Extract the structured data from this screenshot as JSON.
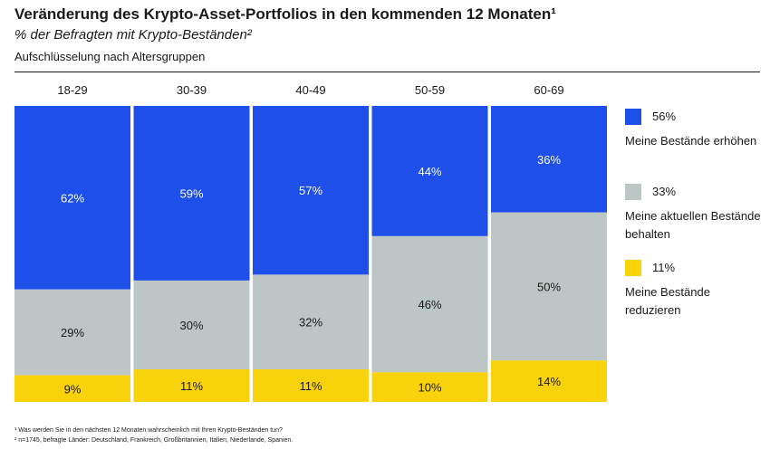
{
  "title": "Veränderung des Krypto-Asset-Portfolios in den kommenden 12 Monaten¹",
  "subtitle": "% der Befragten mit Krypto-Beständen²",
  "breakdown": "Aufschlüsselung nach Altersgruppen",
  "colors": {
    "blue": "#1e4fe8",
    "grey": "#bcc6c5",
    "yellow": "#f8d20a"
  },
  "chart_data": {
    "type": "bar",
    "stacked": true,
    "orientation": "vertical",
    "categories": [
      "18-29",
      "30-39",
      "40-49",
      "50-59",
      "60-69"
    ],
    "ylim": [
      0,
      100
    ],
    "grid": false,
    "legend_position": "right",
    "series": [
      {
        "name": "Meine Bestände erhöhen",
        "color": "#1e4fe8",
        "values": [
          62,
          59,
          57,
          44,
          36
        ],
        "labels": [
          "62%",
          "59%",
          "57%",
          "44%",
          "36%"
        ]
      },
      {
        "name": "Meine aktuellen Bestände behalten",
        "color": "#bcc6c5",
        "values": [
          29,
          30,
          32,
          46,
          50
        ],
        "labels": [
          "29%",
          "30%",
          "32%",
          "46%",
          "50%"
        ]
      },
      {
        "name": "Meine Bestände reduzieren",
        "color": "#f8d20a",
        "values": [
          9,
          11,
          11,
          10,
          14
        ],
        "labels": [
          "9%",
          "11%",
          "11%",
          "10%",
          "14%"
        ]
      }
    ]
  },
  "legend": [
    {
      "value": "56%",
      "label": "Meine Bestände erhöhen",
      "color": "#1e4fe8"
    },
    {
      "value": "33%",
      "label": "Meine aktuellen Bestände behalten",
      "color": "#bcc6c5"
    },
    {
      "value": "11%",
      "label": "Meine Bestände reduzieren",
      "color": "#f8d20a"
    }
  ],
  "footnotes": [
    "¹ Was werden Sie in den nächsten 12 Monaten wahrscheinlich mit Ihren Krypto-Beständen tun?",
    "² n=1745, befragte Länder: Deutschland, Frankreich, Großbritannien, Italien, Niederlande, Spanien."
  ]
}
